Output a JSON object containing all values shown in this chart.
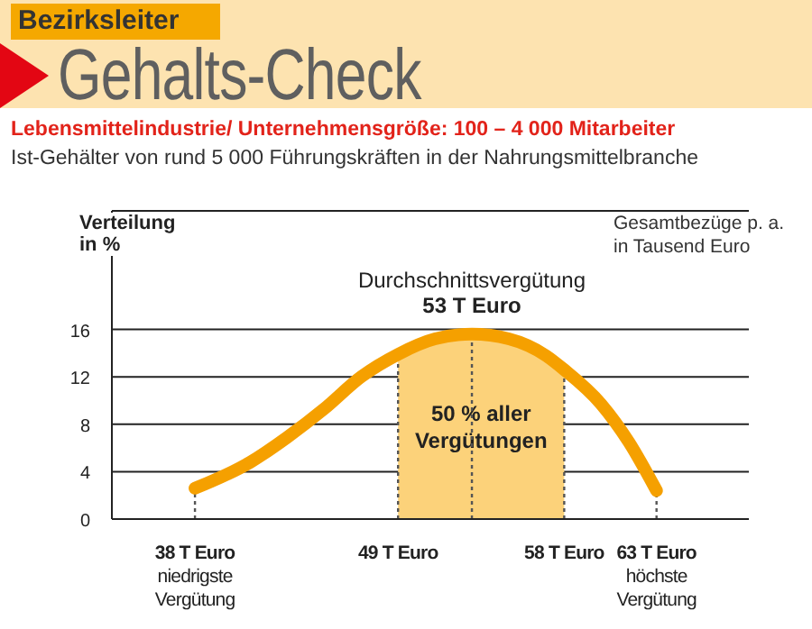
{
  "chart_data": {
    "type": "line",
    "title": "Gehalts-Check",
    "subtitle": "Lebensmittelindustrie/ Unternehmensgröße: 100 – 4 000 Mitarbeiter",
    "annotations": [
      "Bezirksleiter",
      "Ist-Gehälter von rund 5 000 Führungskräften in der Nahrungsmittelbranche"
    ],
    "xlabel": "Gesamtbezüge p. a.\nin Tausend Euro",
    "ylabel": "Verteilung\nin %",
    "series": [
      {
        "color": "#f5a000",
        "x": [
          38,
          41,
          43,
          45,
          47,
          49,
          51,
          53,
          55,
          57,
          58,
          60,
          61.5,
          63
        ],
        "values": [
          2.6,
          4.8,
          6.9,
          9.3,
          12,
          13.9,
          15.2,
          15.6,
          15.2,
          13.8,
          12.6,
          9.7,
          6.5,
          2.4
        ]
      }
    ],
    "xlim": [
      33.5,
      68
    ],
    "xticks": [
      {
        "value": 38,
        "label": "38 T Euro\nniedrigste\nVergütung"
      },
      {
        "value": 49,
        "label": "49 T Euro"
      },
      {
        "value": 58,
        "label": "58 T Euro"
      },
      {
        "value": 63,
        "label": "63 T Euro\nhöchste\nVergütung"
      }
    ],
    "ylim": [
      0,
      26
    ],
    "yticks": [
      0,
      4,
      8,
      12,
      16
    ],
    "grid": "y",
    "marker": "none",
    "line_style": "solid",
    "ref_lines": [
      {
        "axis": "x",
        "value": 38,
        "line_style": "dotted",
        "color": "#555555"
      },
      {
        "axis": "x",
        "value": 49,
        "line_style": "dotted",
        "color": "#555555"
      },
      {
        "axis": "x",
        "value": 53,
        "line_style": "dotted",
        "color": "#555555",
        "label": "Durchschnittsvergütung\n53 T Euro"
      },
      {
        "axis": "x",
        "value": 58,
        "line_style": "dotted",
        "color": "#555555"
      },
      {
        "axis": "x",
        "value": 63,
        "line_style": "dotted",
        "color": "#555555"
      }
    ],
    "bands": [
      {
        "axis": "x",
        "from": 49,
        "to": 58,
        "label": "50 % aller\nVergütungen",
        "color": "#fcd27a"
      }
    ]
  }
}
